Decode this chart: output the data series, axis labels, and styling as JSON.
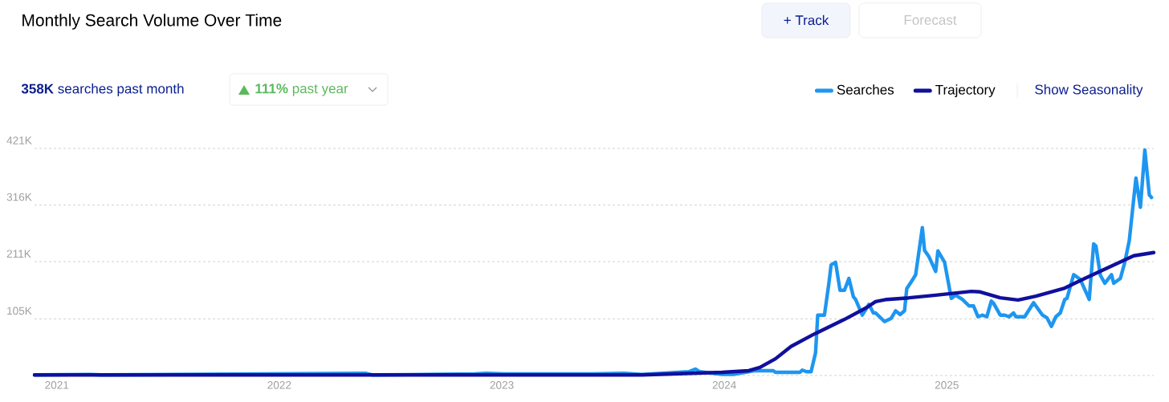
{
  "chart_data": {
    "type": "line",
    "title": "Monthly Search Volume Over Time",
    "annotations": [
      "**358K** searches past month",
      "**111%** past year",
      "+ Track",
      "Forecast",
      "Show Seasonality"
    ],
    "series": [
      {
        "name": "Searches",
        "color": "#1e96f0",
        "x": [
          2020.9,
          2021.15,
          2021.2,
          2022.39,
          2022.42,
          2022.88,
          2022.93,
          2023.01,
          2023.09,
          2023.22,
          2023.41,
          2023.55,
          2023.63,
          2023.84,
          2023.87,
          2023.89,
          2023.99,
          2024.04,
          2024.14,
          2024.22,
          2024.23,
          2024.34,
          2024.35,
          2024.37,
          2024.39,
          2024.41,
          2024.42,
          2024.45,
          2024.47,
          2024.48,
          2024.5,
          2024.52,
          2024.54,
          2024.56,
          2024.58,
          2024.59,
          2024.62,
          2024.65,
          2024.67,
          2024.68,
          2024.72,
          2024.75,
          2024.77,
          2024.79,
          2024.81,
          2024.82,
          2024.85,
          2024.86,
          2024.89,
          2024.9,
          2024.92,
          2024.95,
          2024.96,
          2024.99,
          2025.02,
          2025.04,
          2025.07,
          2025.1,
          2025.12,
          2025.14,
          2025.16,
          2025.18,
          2025.2,
          2025.21,
          2025.24,
          2025.26,
          2025.28,
          2025.3,
          2025.31,
          2025.35,
          2025.39,
          2025.43,
          2025.45,
          2025.47,
          2025.49,
          2025.51,
          2025.53,
          2025.54,
          2025.57,
          2025.6,
          2025.64,
          2025.66,
          2025.67,
          2025.69,
          2025.71,
          2025.74,
          2025.75,
          2025.78,
          2025.8,
          2025.82,
          2025.85,
          2025.87,
          2025.89,
          2025.91,
          2025.92
        ],
        "values": [
          1000,
          2000,
          1000,
          4000,
          1000,
          3000,
          4000,
          3000,
          3000,
          3000,
          3000,
          4000,
          2000,
          7000,
          12000,
          7000,
          2000,
          2000,
          9000,
          9000,
          6000,
          6000,
          10000,
          7000,
          7000,
          42000,
          112000,
          112000,
          171000,
          205000,
          210000,
          158000,
          158000,
          180000,
          146000,
          141000,
          112000,
          132000,
          116000,
          116000,
          100000,
          106000,
          120000,
          113000,
          120000,
          161000,
          180000,
          187000,
          274000,
          232000,
          220000,
          193000,
          231000,
          210000,
          143000,
          149000,
          141000,
          129000,
          129000,
          109000,
          112000,
          109000,
          138000,
          134000,
          112000,
          112000,
          109000,
          116000,
          109000,
          109000,
          135000,
          112000,
          107000,
          91000,
          109000,
          116000,
          141000,
          143000,
          187000,
          178000,
          141000,
          244000,
          240000,
          186000,
          171000,
          187000,
          171000,
          180000,
          210000,
          250000,
          366000,
          312000,
          418000,
          335000,
          330000
        ]
      },
      {
        "name": "Trajectory",
        "color": "#10109c",
        "x": [
          2020.9,
          2023.63,
          2023.99,
          2024.11,
          2024.16,
          2024.23,
          2024.3,
          2024.4,
          2024.54,
          2024.64,
          2024.68,
          2024.73,
          2024.83,
          2024.95,
          2025.11,
          2025.15,
          2025.24,
          2025.32,
          2025.4,
          2025.53,
          2025.62,
          2025.73,
          2025.84,
          2025.93
        ],
        "values": [
          1000,
          1000,
          6000,
          9000,
          15000,
          31000,
          54000,
          76000,
          104000,
          126000,
          137000,
          141000,
          144000,
          149000,
          156000,
          155000,
          144000,
          140000,
          147000,
          162000,
          180000,
          201000,
          222000,
          228000
        ]
      }
    ],
    "xlim": [
      2020.9,
      2025.93
    ],
    "xticks": [
      2021,
      2022,
      2023,
      2024,
      2025
    ],
    "ylim": [
      0,
      421000
    ],
    "yticks": [
      {
        "value": 0,
        "label": null
      },
      {
        "value": 105000,
        "label": "105K"
      },
      {
        "value": 211000,
        "label": "211K"
      },
      {
        "value": 316000,
        "label": "316K"
      },
      {
        "value": 421000,
        "label": "421K"
      }
    ],
    "grid": "y",
    "legend": "top right",
    "marker": "none",
    "line_style": "solid"
  }
}
